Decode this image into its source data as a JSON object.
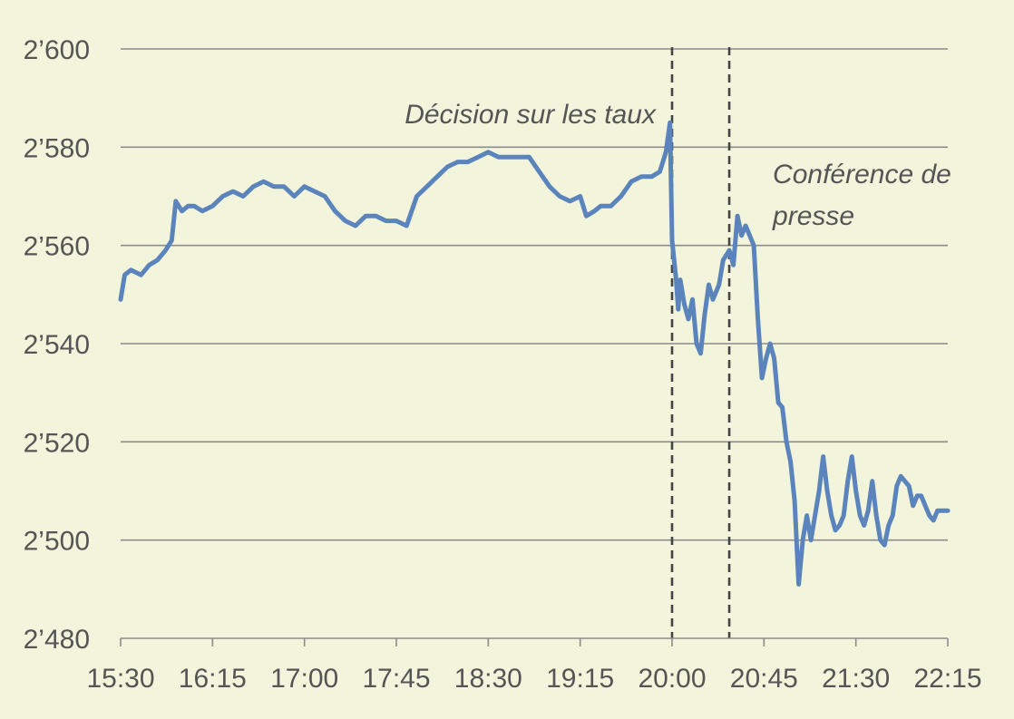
{
  "chart_data": {
    "type": "line",
    "x_ticks": [
      "15:30",
      "16:15",
      "17:00",
      "17:45",
      "18:30",
      "19:15",
      "20:00",
      "20:45",
      "21:30",
      "22:15"
    ],
    "y_ticks": [
      "2’480",
      "2’500",
      "2’520",
      "2’540",
      "2’560",
      "2’580",
      "2’600"
    ],
    "ylim": [
      2480,
      2600
    ],
    "xlim_minutes_since_1530": [
      0,
      405
    ],
    "grid": "horizontal",
    "line_color": "#5a84bb",
    "grid_color": "#8c8c8c",
    "vlines": [
      {
        "x": "20:00",
        "style": "dashed"
      },
      {
        "x": "20:28",
        "style": "dashed"
      }
    ],
    "annotations": [
      {
        "lines": [
          "Décision sur les taux"
        ],
        "anchor_x": "20:00"
      },
      {
        "lines": [
          "Conférence de",
          "presse"
        ],
        "anchor_x": "20:28"
      }
    ],
    "series": [
      {
        "points": [
          [
            "15:30",
            2549
          ],
          [
            "15:32",
            2554
          ],
          [
            "15:35",
            2555
          ],
          [
            "15:40",
            2554
          ],
          [
            "15:44",
            2556
          ],
          [
            "15:48",
            2557
          ],
          [
            "15:52",
            2559
          ],
          [
            "15:55",
            2561
          ],
          [
            "15:57",
            2569
          ],
          [
            "16:00",
            2567
          ],
          [
            "16:03",
            2568
          ],
          [
            "16:06",
            2568
          ],
          [
            "16:10",
            2567
          ],
          [
            "16:15",
            2568
          ],
          [
            "16:20",
            2570
          ],
          [
            "16:25",
            2571
          ],
          [
            "16:30",
            2570
          ],
          [
            "16:35",
            2572
          ],
          [
            "16:40",
            2573
          ],
          [
            "16:45",
            2572
          ],
          [
            "16:50",
            2572
          ],
          [
            "16:55",
            2570
          ],
          [
            "17:00",
            2572
          ],
          [
            "17:05",
            2571
          ],
          [
            "17:10",
            2570
          ],
          [
            "17:15",
            2567
          ],
          [
            "17:20",
            2565
          ],
          [
            "17:25",
            2564
          ],
          [
            "17:30",
            2566
          ],
          [
            "17:35",
            2566
          ],
          [
            "17:40",
            2565
          ],
          [
            "17:45",
            2565
          ],
          [
            "17:50",
            2564
          ],
          [
            "17:55",
            2570
          ],
          [
            "18:00",
            2572
          ],
          [
            "18:05",
            2574
          ],
          [
            "18:10",
            2576
          ],
          [
            "18:15",
            2577
          ],
          [
            "18:20",
            2577
          ],
          [
            "18:25",
            2578
          ],
          [
            "18:30",
            2579
          ],
          [
            "18:35",
            2578
          ],
          [
            "18:40",
            2578
          ],
          [
            "18:45",
            2578
          ],
          [
            "18:50",
            2578
          ],
          [
            "18:55",
            2575
          ],
          [
            "19:00",
            2572
          ],
          [
            "19:05",
            2570
          ],
          [
            "19:10",
            2569
          ],
          [
            "19:15",
            2570
          ],
          [
            "19:18",
            2566
          ],
          [
            "19:22",
            2567
          ],
          [
            "19:25",
            2568
          ],
          [
            "19:30",
            2568
          ],
          [
            "19:35",
            2570
          ],
          [
            "19:40",
            2573
          ],
          [
            "19:45",
            2574
          ],
          [
            "19:50",
            2574
          ],
          [
            "19:54",
            2575
          ],
          [
            "19:57",
            2579
          ],
          [
            "19:59",
            2585
          ],
          [
            "20:00",
            2561
          ],
          [
            "20:02",
            2553
          ],
          [
            "20:03",
            2547
          ],
          [
            "20:04",
            2553
          ],
          [
            "20:06",
            2548
          ],
          [
            "20:08",
            2545
          ],
          [
            "20:10",
            2549
          ],
          [
            "20:12",
            2540
          ],
          [
            "20:14",
            2538
          ],
          [
            "20:16",
            2546
          ],
          [
            "20:18",
            2552
          ],
          [
            "20:20",
            2549
          ],
          [
            "20:23",
            2552
          ],
          [
            "20:25",
            2557
          ],
          [
            "20:28",
            2559
          ],
          [
            "20:30",
            2556
          ],
          [
            "20:32",
            2566
          ],
          [
            "20:34",
            2562
          ],
          [
            "20:36",
            2564
          ],
          [
            "20:38",
            2562
          ],
          [
            "20:40",
            2560
          ],
          [
            "20:42",
            2545
          ],
          [
            "20:44",
            2533
          ],
          [
            "20:46",
            2537
          ],
          [
            "20:48",
            2540
          ],
          [
            "20:50",
            2537
          ],
          [
            "20:52",
            2528
          ],
          [
            "20:54",
            2527
          ],
          [
            "20:56",
            2520
          ],
          [
            "20:58",
            2516
          ],
          [
            "21:00",
            2508
          ],
          [
            "21:02",
            2491
          ],
          [
            "21:04",
            2500
          ],
          [
            "21:06",
            2505
          ],
          [
            "21:08",
            2500
          ],
          [
            "21:12",
            2510
          ],
          [
            "21:14",
            2517
          ],
          [
            "21:16",
            2510
          ],
          [
            "21:18",
            2505
          ],
          [
            "21:20",
            2502
          ],
          [
            "21:22",
            2503
          ],
          [
            "21:24",
            2505
          ],
          [
            "21:26",
            2512
          ],
          [
            "21:28",
            2517
          ],
          [
            "21:30",
            2510
          ],
          [
            "21:32",
            2505
          ],
          [
            "21:34",
            2503
          ],
          [
            "21:36",
            2506
          ],
          [
            "21:38",
            2512
          ],
          [
            "21:40",
            2505
          ],
          [
            "21:42",
            2500
          ],
          [
            "21:44",
            2499
          ],
          [
            "21:46",
            2503
          ],
          [
            "21:48",
            2505
          ],
          [
            "21:50",
            2511
          ],
          [
            "21:52",
            2513
          ],
          [
            "21:54",
            2512
          ],
          [
            "21:56",
            2511
          ],
          [
            "21:58",
            2507
          ],
          [
            "22:00",
            2509
          ],
          [
            "22:02",
            2509
          ],
          [
            "22:04",
            2507
          ],
          [
            "22:06",
            2505
          ],
          [
            "22:08",
            2504
          ],
          [
            "22:10",
            2506
          ],
          [
            "22:15",
            2506
          ]
        ]
      }
    ]
  }
}
